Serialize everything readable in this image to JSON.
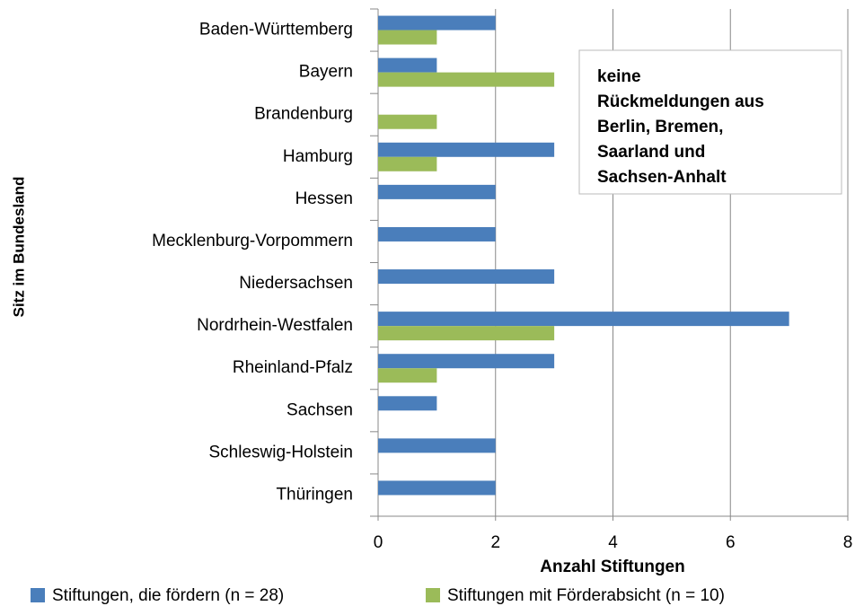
{
  "chart_data": {
    "type": "hbar",
    "categories": [
      "Baden-Württemberg",
      "Bayern",
      "Brandenburg",
      "Hamburg",
      "Hessen",
      "Mecklenburg-Vorpommern",
      "Niedersachsen",
      "Nordrhein-Westfalen",
      "Rheinland-Pfalz",
      "Sachsen",
      "Schleswig-Holstein",
      "Thüringen"
    ],
    "series": [
      {
        "name": "Stiftungen, die fördern (n = 28)",
        "color": "#4a7ebb",
        "values": [
          2,
          1,
          0,
          3,
          2,
          2,
          3,
          7,
          3,
          1,
          2,
          2
        ]
      },
      {
        "name": "Stiftungen mit Förderabsicht (n = 10)",
        "color": "#9bbb59",
        "values": [
          1,
          3,
          1,
          1,
          0,
          0,
          0,
          3,
          1,
          0,
          0,
          0
        ]
      }
    ],
    "xlim": [
      0,
      8
    ],
    "xticks": [
      0,
      2,
      4,
      6,
      8
    ],
    "grid": true,
    "x_label": "Anzahl Stiftungen",
    "y_label": "Sitz im Bundesland",
    "annotation": [
      "keine",
      "Rückmeldungen aus",
      "Berlin, Bremen,",
      "Saarland und",
      "Sachsen-Anhalt"
    ],
    "legend": "bottom"
  }
}
